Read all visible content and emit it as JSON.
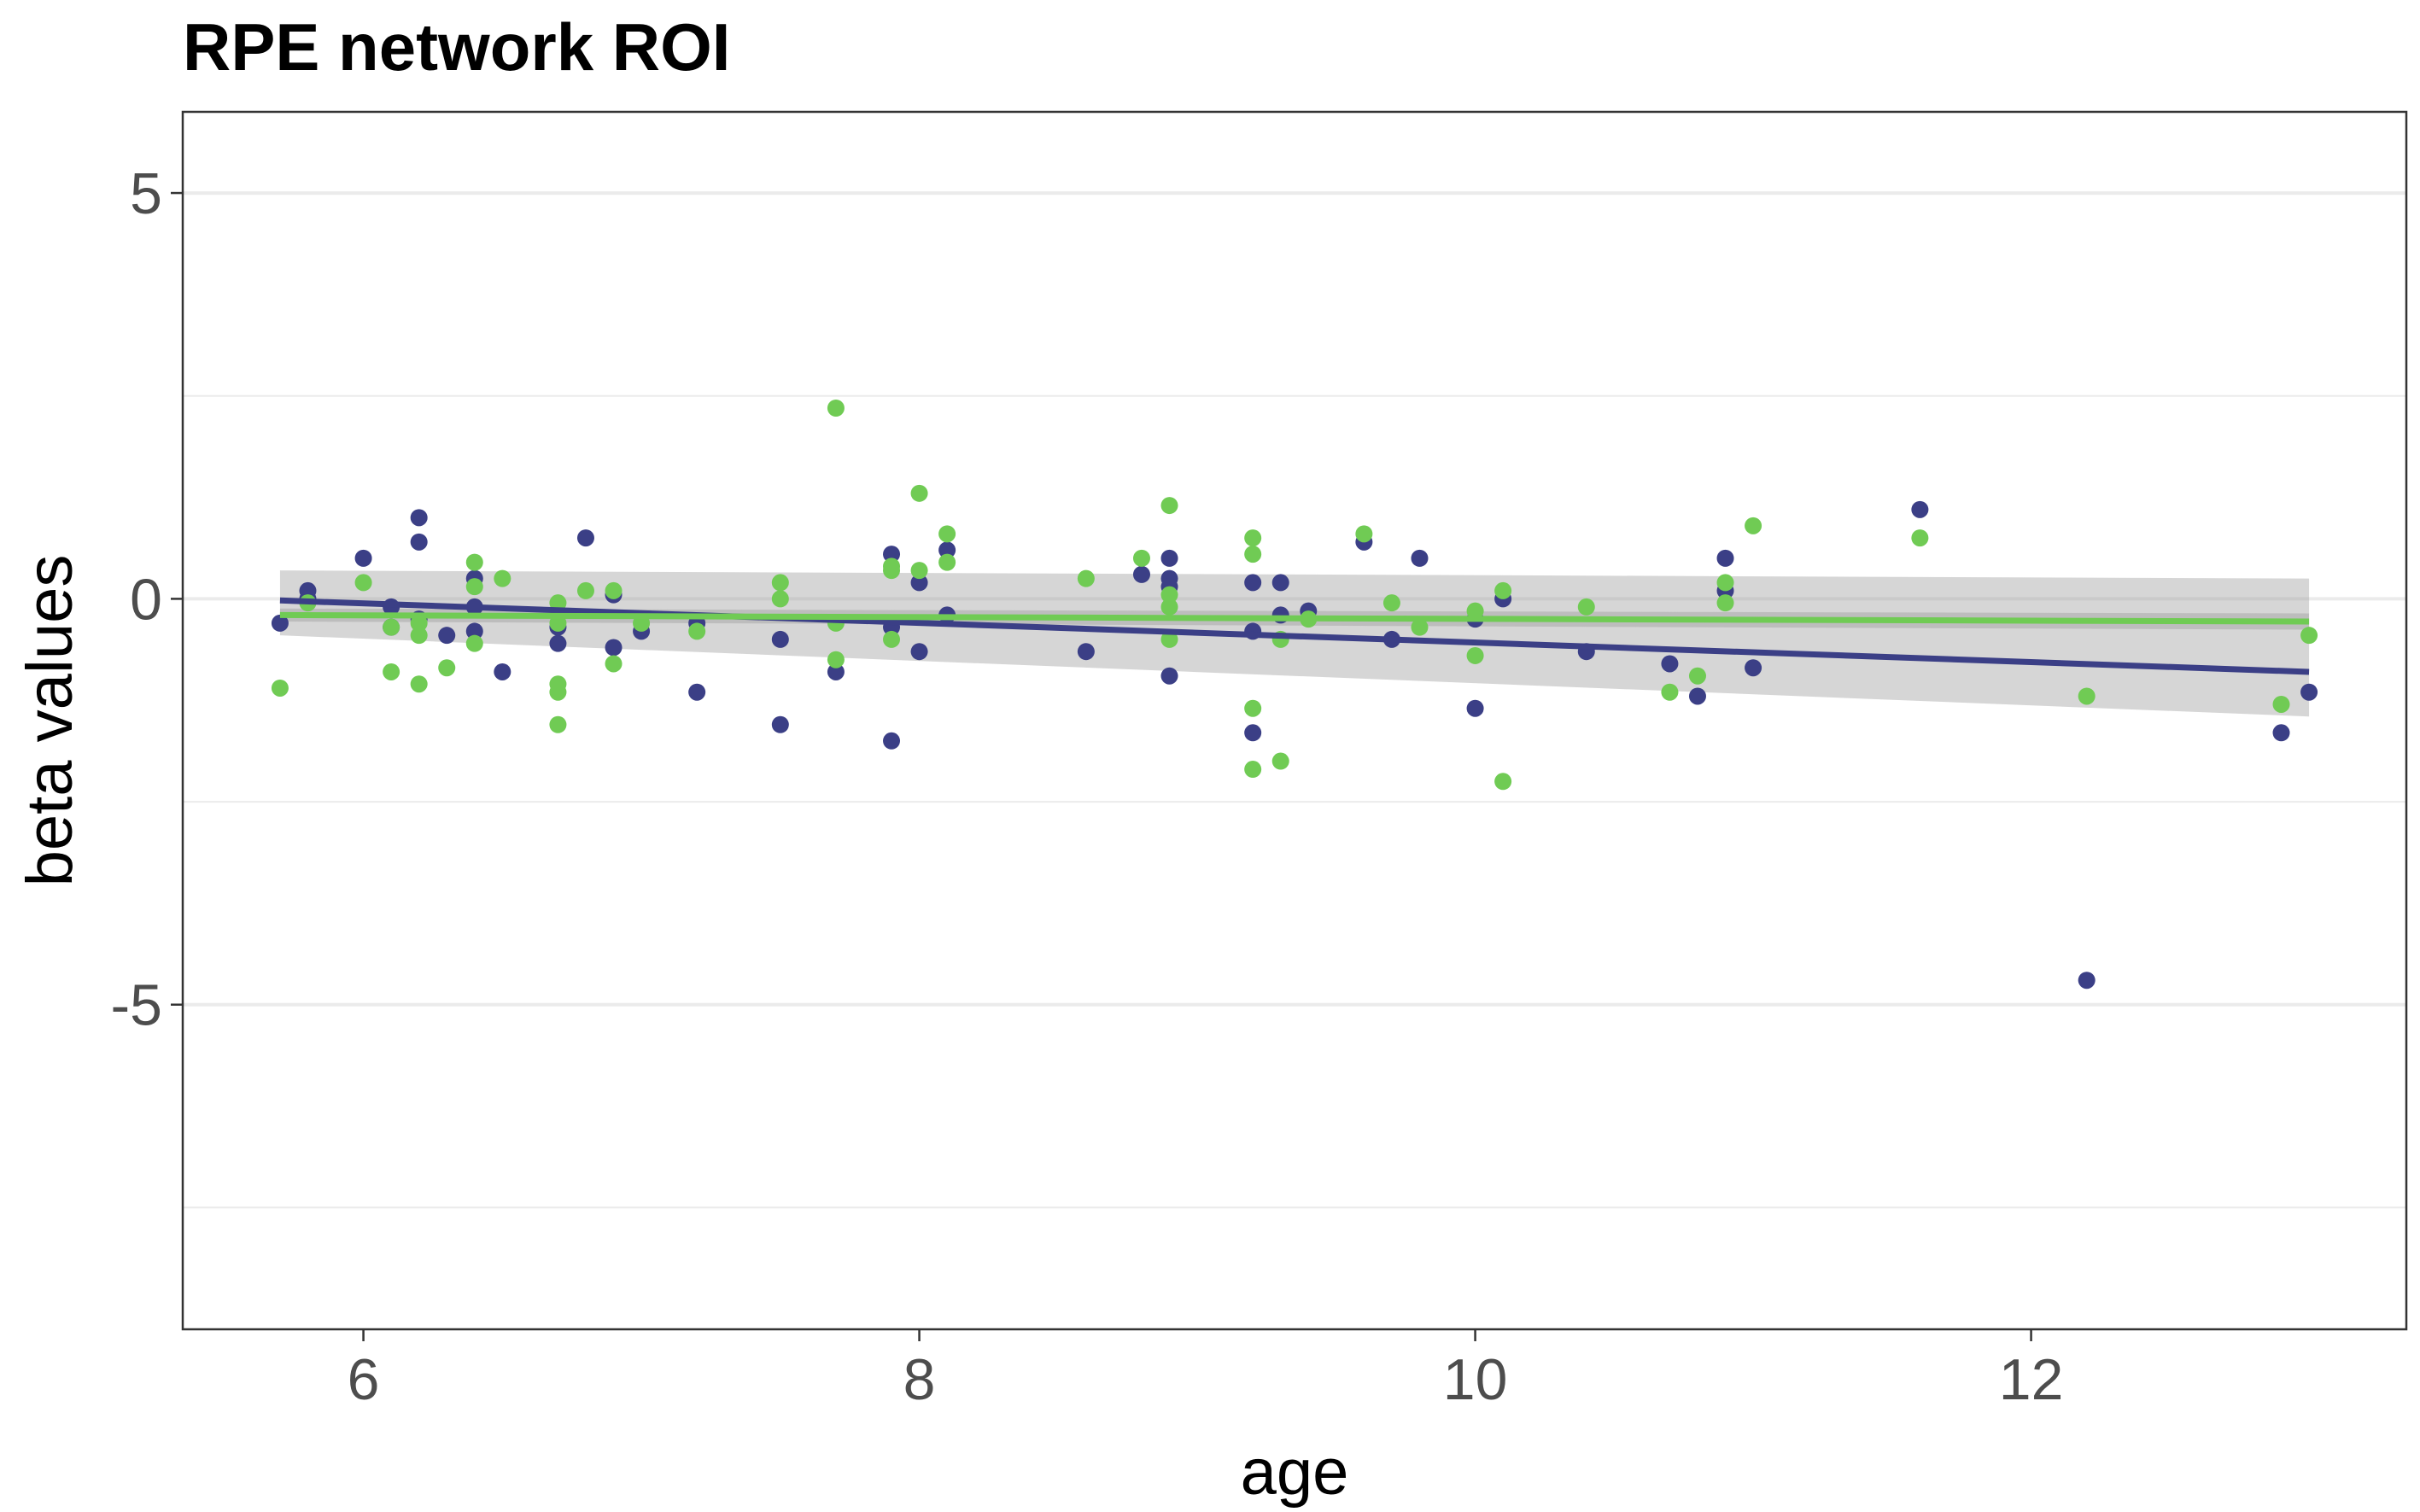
{
  "chart_data": {
    "type": "scatter",
    "title": "RPE network ROI",
    "xlabel": "age",
    "ylabel": "beta values",
    "xlim": [
      5.35,
      13.35
    ],
    "ylim": [
      -9.0,
      6.0
    ],
    "x_ticks": [
      6,
      8,
      10,
      12
    ],
    "x_tick_labels": [
      "6",
      "8",
      "10",
      "12"
    ],
    "y_ticks": [
      5,
      0,
      -5
    ],
    "y_tick_labels": [
      "5",
      "0",
      "-5"
    ],
    "y_minor_gridlines": [
      2.5,
      -2.5,
      -7.5
    ],
    "grid": true,
    "legend": "none",
    "colors": {
      "series_navy": "#3b3f86",
      "series_green": "#70cb54",
      "confidence_band": "#999999",
      "gridline": "#ebebeb",
      "panel_border": "#333333"
    },
    "series": [
      {
        "color": "#3b3f86",
        "points": [
          [
            5.7,
            -0.3
          ],
          [
            5.8,
            0.1
          ],
          [
            5.8,
            0.0
          ],
          [
            6.0,
            0.5
          ],
          [
            6.1,
            -0.35
          ],
          [
            6.1,
            -0.1
          ],
          [
            6.2,
            1.0
          ],
          [
            6.2,
            0.7
          ],
          [
            6.2,
            -0.25
          ],
          [
            6.3,
            -0.45
          ],
          [
            6.4,
            0.25
          ],
          [
            6.4,
            -0.1
          ],
          [
            6.4,
            -0.4
          ],
          [
            6.5,
            -0.9
          ],
          [
            6.7,
            -0.55
          ],
          [
            6.7,
            -0.35
          ],
          [
            6.8,
            0.75
          ],
          [
            6.9,
            0.05
          ],
          [
            6.9,
            -0.6
          ],
          [
            7.0,
            -0.4
          ],
          [
            7.2,
            -1.15
          ],
          [
            7.2,
            -0.3
          ],
          [
            7.5,
            -0.5
          ],
          [
            7.5,
            -1.55
          ],
          [
            7.7,
            -0.9
          ],
          [
            7.9,
            0.55
          ],
          [
            7.9,
            -0.35
          ],
          [
            7.9,
            -1.75
          ],
          [
            8.0,
            0.2
          ],
          [
            8.0,
            -0.65
          ],
          [
            8.1,
            0.6
          ],
          [
            8.1,
            -0.2
          ],
          [
            8.6,
            -0.65
          ],
          [
            8.8,
            0.3
          ],
          [
            8.9,
            0.5
          ],
          [
            8.9,
            0.25
          ],
          [
            8.9,
            0.15
          ],
          [
            8.9,
            -0.95
          ],
          [
            9.2,
            0.2
          ],
          [
            9.2,
            -0.4
          ],
          [
            9.2,
            -1.65
          ],
          [
            9.3,
            0.2
          ],
          [
            9.3,
            -0.2
          ],
          [
            9.4,
            -0.15
          ],
          [
            9.6,
            0.7
          ],
          [
            9.7,
            -0.5
          ],
          [
            9.8,
            0.5
          ],
          [
            10.0,
            -1.35
          ],
          [
            10.0,
            -0.25
          ],
          [
            10.1,
            0.0
          ],
          [
            10.4,
            -0.65
          ],
          [
            10.7,
            -0.8
          ],
          [
            10.8,
            -1.2
          ],
          [
            10.9,
            0.5
          ],
          [
            10.9,
            0.1
          ],
          [
            11.0,
            -0.85
          ],
          [
            11.6,
            1.1
          ],
          [
            12.2,
            -4.7
          ],
          [
            12.9,
            -1.65
          ],
          [
            13.0,
            -1.15
          ]
        ],
        "fit": {
          "x": [
            5.7,
            13.0
          ],
          "y": [
            -0.02,
            -0.9
          ]
        },
        "band": {
          "x": [
            5.7,
            13.0
          ],
          "upper": [
            0.35,
            0.25
          ],
          "lower": [
            -0.45,
            -1.45
          ]
        }
      },
      {
        "color": "#70cb54",
        "points": [
          [
            5.7,
            -1.1
          ],
          [
            5.8,
            -0.05
          ],
          [
            6.0,
            0.2
          ],
          [
            6.1,
            -0.9
          ],
          [
            6.1,
            -0.35
          ],
          [
            6.2,
            -0.3
          ],
          [
            6.2,
            -0.45
          ],
          [
            6.2,
            -1.05
          ],
          [
            6.3,
            -0.85
          ],
          [
            6.4,
            0.45
          ],
          [
            6.4,
            0.15
          ],
          [
            6.4,
            -0.55
          ],
          [
            6.5,
            0.25
          ],
          [
            6.7,
            -0.05
          ],
          [
            6.7,
            -0.3
          ],
          [
            6.7,
            -1.05
          ],
          [
            6.7,
            -1.15
          ],
          [
            6.7,
            -1.55
          ],
          [
            6.8,
            0.1
          ],
          [
            6.9,
            0.1
          ],
          [
            6.9,
            -0.8
          ],
          [
            7.0,
            -0.3
          ],
          [
            7.2,
            -0.4
          ],
          [
            7.5,
            0.2
          ],
          [
            7.5,
            0.0
          ],
          [
            7.7,
            2.35
          ],
          [
            7.7,
            -0.75
          ],
          [
            7.7,
            -0.3
          ],
          [
            7.9,
            0.4
          ],
          [
            7.9,
            0.35
          ],
          [
            7.9,
            -0.5
          ],
          [
            8.0,
            1.3
          ],
          [
            8.0,
            0.35
          ],
          [
            8.1,
            0.8
          ],
          [
            8.1,
            0.45
          ],
          [
            8.6,
            0.25
          ],
          [
            8.8,
            0.5
          ],
          [
            8.9,
            1.15
          ],
          [
            8.9,
            0.05
          ],
          [
            8.9,
            -0.1
          ],
          [
            8.9,
            -0.5
          ],
          [
            9.2,
            0.75
          ],
          [
            9.2,
            0.55
          ],
          [
            9.2,
            -1.35
          ],
          [
            9.2,
            -2.1
          ],
          [
            9.3,
            -0.5
          ],
          [
            9.3,
            -2.0
          ],
          [
            9.4,
            -0.25
          ],
          [
            9.6,
            0.8
          ],
          [
            9.7,
            -0.05
          ],
          [
            9.8,
            -0.35
          ],
          [
            10.0,
            -0.15
          ],
          [
            10.0,
            -0.7
          ],
          [
            10.1,
            0.1
          ],
          [
            10.1,
            -2.25
          ],
          [
            10.4,
            -0.1
          ],
          [
            10.7,
            -1.15
          ],
          [
            10.8,
            -0.95
          ],
          [
            10.9,
            0.2
          ],
          [
            10.9,
            -0.05
          ],
          [
            11.0,
            0.9
          ],
          [
            11.6,
            0.75
          ],
          [
            12.2,
            -1.2
          ],
          [
            12.9,
            -1.3
          ],
          [
            13.0,
            -0.45
          ]
        ],
        "fit": {
          "x": [
            5.7,
            13.0
          ],
          "y": [
            -0.2,
            -0.28
          ]
        },
        "band": {
          "x": [
            5.7,
            13.0
          ],
          "upper": [
            -0.12,
            -0.18
          ],
          "lower": [
            -0.28,
            -0.38
          ]
        }
      }
    ]
  }
}
